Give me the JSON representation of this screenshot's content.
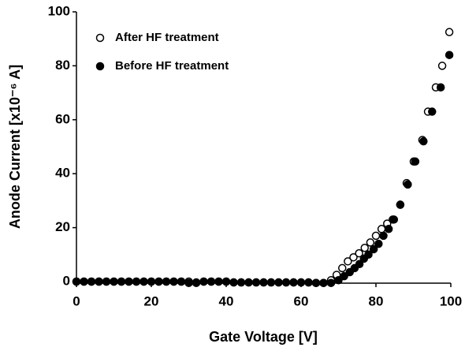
{
  "chart_data": {
    "type": "scatter",
    "xlabel": "Gate Voltage [V]",
    "ylabel": "Anode Current [x10⁻⁶ A]",
    "xlim": [
      0,
      100
    ],
    "ylim": [
      0,
      100
    ],
    "xticks": [
      0,
      20,
      40,
      60,
      80,
      100
    ],
    "yticks": [
      0,
      20,
      40,
      60,
      80,
      100
    ],
    "legend": "upper left",
    "series": [
      {
        "name": "After HF treatment",
        "color": "#000000",
        "marker": "open",
        "x": [
          0,
          2,
          4,
          6,
          8,
          10,
          12,
          14,
          16,
          18,
          20,
          22,
          24,
          26,
          28,
          30,
          32,
          34,
          36,
          38,
          40,
          42,
          44,
          46,
          48,
          50,
          52,
          54,
          56,
          58,
          60,
          62,
          64,
          66,
          68,
          69.5,
          71,
          72.5,
          74,
          75.5,
          77,
          78.5,
          80,
          81.5,
          83,
          84.5,
          86.5,
          88.2,
          90.1,
          92.4,
          93.9,
          96,
          97.7,
          99.6
        ],
        "values": [
          0,
          0,
          0,
          0,
          0,
          0,
          0,
          0,
          0,
          0,
          0,
          0,
          0,
          0,
          0,
          0,
          -0.3,
          0,
          0,
          0,
          0,
          -0.3,
          -0.3,
          -0.3,
          -0.3,
          -0.3,
          -0.3,
          -0.3,
          -0.3,
          -0.3,
          -0.3,
          -0.3,
          -0.5,
          -0.5,
          0.5,
          2.5,
          5,
          7.5,
          9,
          10.5,
          12.5,
          14.5,
          17,
          19.5,
          21.5,
          23,
          28.5,
          36.5,
          44.5,
          52.5,
          63,
          72,
          80,
          92.5
        ]
      },
      {
        "name": "Before HF treatment",
        "color": "#000000",
        "marker": "filled",
        "x": [
          0,
          2,
          4,
          6,
          8,
          10,
          12,
          14,
          16,
          18,
          20,
          22,
          24,
          26,
          28,
          30,
          32,
          34,
          36,
          38,
          40,
          42,
          44,
          46,
          48,
          50,
          52,
          54,
          56,
          58,
          60,
          62,
          64,
          66,
          68,
          70,
          71.5,
          73,
          74.3,
          75.6,
          76.8,
          78,
          79.4,
          80.7,
          82,
          83.4,
          84.8,
          86.5,
          88.5,
          90.5,
          92.7,
          95,
          97.3,
          99.6
        ],
        "values": [
          0,
          0,
          0,
          0,
          0,
          0,
          0,
          0,
          0,
          0,
          0,
          0,
          0,
          0,
          0,
          -0.5,
          -0.5,
          0,
          0,
          0,
          0,
          -0.3,
          -0.3,
          -0.3,
          -0.3,
          -0.3,
          -0.3,
          -0.3,
          -0.3,
          -0.3,
          -0.3,
          -0.3,
          -0.5,
          -0.5,
          -0.5,
          0.5,
          2,
          3.5,
          5,
          6.5,
          8.5,
          10,
          12,
          14,
          17,
          19.5,
          23,
          28.5,
          36,
          44.5,
          52,
          63,
          72,
          84
        ]
      }
    ]
  }
}
